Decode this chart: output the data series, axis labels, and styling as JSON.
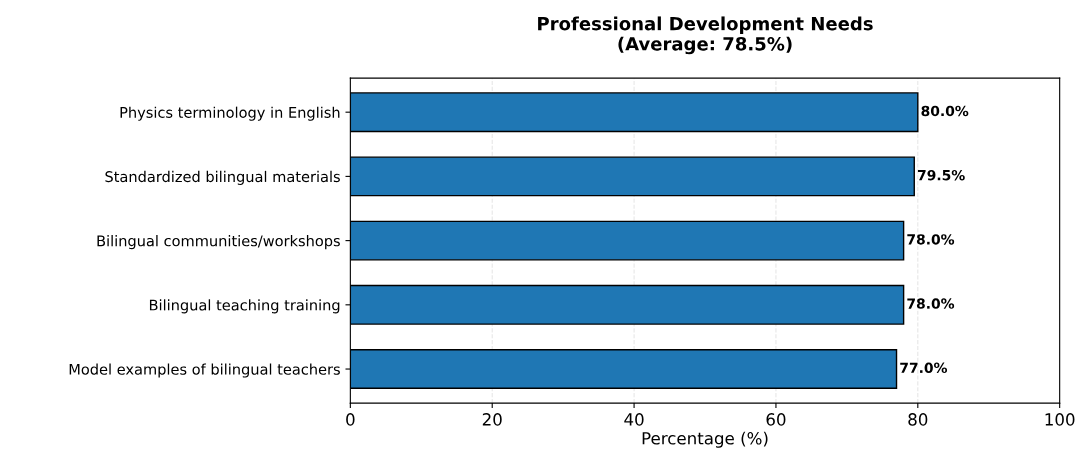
{
  "chart_data": {
    "type": "bar",
    "orientation": "horizontal",
    "title": "Professional Development Needs\n(Average: 78.5%)",
    "xlabel": "Percentage (%)",
    "categories": [
      "Physics terminology in English",
      "Standardized bilingual materials",
      "Bilingual communities/workshops",
      "Bilingual teaching training",
      "Model examples of bilingual teachers"
    ],
    "values": [
      80.0,
      79.5,
      78.0,
      78.0,
      77.0
    ],
    "value_labels": [
      "80.0%",
      "79.5%",
      "78.0%",
      "78.0%",
      "77.0%"
    ],
    "color": "#1f77b4",
    "xlim": [
      0,
      100
    ],
    "xticks": [
      0,
      20,
      40,
      60,
      80,
      100
    ],
    "grid": "x"
  }
}
